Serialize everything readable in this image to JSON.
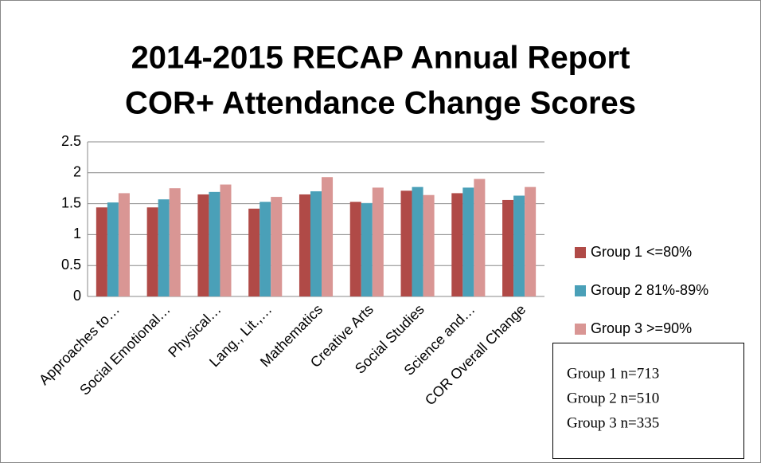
{
  "chart_data": {
    "type": "bar",
    "title": [
      "2014-2015 RECAP Annual Report",
      "COR+ Attendance Change Scores"
    ],
    "categories": [
      "Approaches to…",
      "Social Emotional…",
      "Physical…",
      "Lang., Lit.,…",
      "Mathematics",
      "Creative Arts",
      "Social Studies",
      "Science and…",
      "COR Overall Change"
    ],
    "series": [
      {
        "name": "Group 1 <=80%",
        "color": "#b04a47",
        "values": [
          1.44,
          1.44,
          1.65,
          1.42,
          1.65,
          1.53,
          1.71,
          1.67,
          1.56
        ]
      },
      {
        "name": "Group 2 81%-89%",
        "color": "#4aa0b8",
        "values": [
          1.52,
          1.57,
          1.69,
          1.53,
          1.7,
          1.51,
          1.77,
          1.76,
          1.63
        ]
      },
      {
        "name": "Group 3 >=90%",
        "color": "#d99694",
        "values": [
          1.67,
          1.75,
          1.81,
          1.61,
          1.93,
          1.76,
          1.64,
          1.9,
          1.77
        ]
      }
    ],
    "ylim": [
      0,
      2.5
    ],
    "yticks": [
      0,
      0.5,
      1,
      1.5,
      2,
      2.5
    ],
    "grid": true,
    "legend": "right",
    "annotations": [
      "Group 1 n=713",
      "Group 2 n=510",
      "Group 3 n=335"
    ]
  }
}
